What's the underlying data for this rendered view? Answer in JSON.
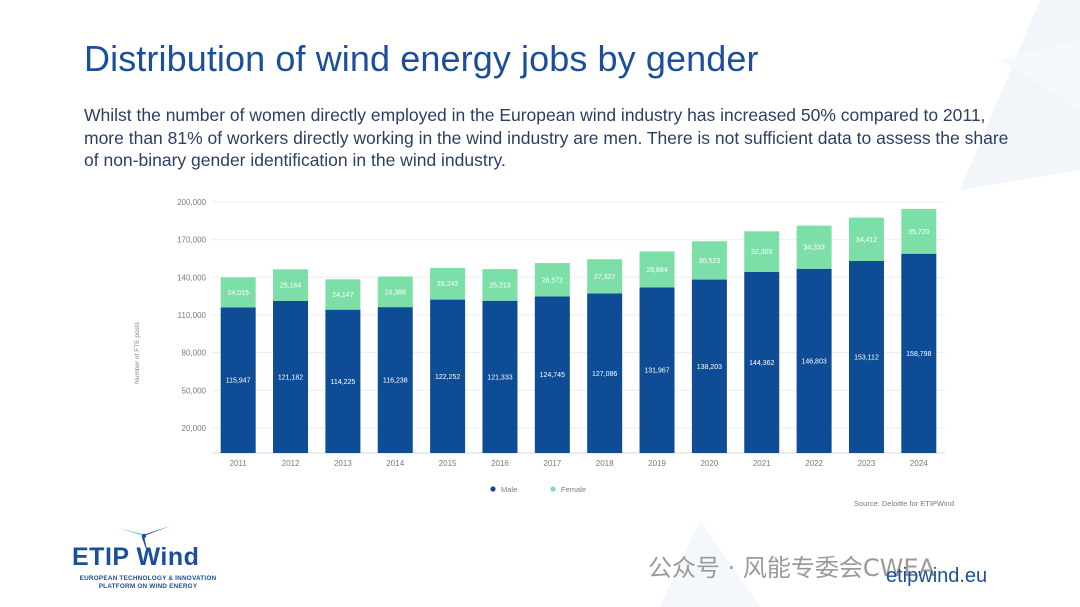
{
  "title": "Distribution of wind energy jobs by gender",
  "subtitle": "Whilst the number of women directly employed in the European wind industry has increased 50% compared to 2011, more than 81% of workers directly working in the wind industry are men. There is not sufficient data to assess the share of non-binary gender identification in the wind industry.",
  "chart_data": {
    "type": "bar",
    "stacked": true,
    "categories": [
      "2011",
      "2012",
      "2013",
      "2014",
      "2015",
      "2016",
      "2017",
      "2018",
      "2019",
      "2020",
      "2021",
      "2022",
      "2023",
      "2024"
    ],
    "series": [
      {
        "name": "Male",
        "color": "#0e4d96",
        "values": [
          115947,
          121182,
          114225,
          116238,
          122252,
          121333,
          124745,
          127086,
          131967,
          138203,
          144362,
          146803,
          153112,
          158798
        ],
        "labels": [
          "115,947",
          "121,182",
          "114,225",
          "116,238",
          "122,252",
          "121,333",
          "124,745",
          "127,086",
          "131,967",
          "138,203",
          "144,362",
          "146,803",
          "153,112",
          "158,798"
        ]
      },
      {
        "name": "Female",
        "color": "#7ddfa8",
        "values": [
          24015,
          25164,
          24147,
          24386,
          25243,
          25213,
          26572,
          27327,
          28684,
          30523,
          32303,
          34333,
          34412,
          35720
        ],
        "labels": [
          "24,015",
          "25,164",
          "24,147",
          "24,386",
          "25,243",
          "25,213",
          "26,572",
          "27,327",
          "28,684",
          "30,523",
          "32,303",
          "34,333",
          "34,412",
          "35,720"
        ]
      }
    ],
    "yticks": [
      "20,000",
      "50,000",
      "80,000",
      "110,000",
      "140,000",
      "170,000",
      "200,000"
    ],
    "ytick_values": [
      20000,
      50000,
      80000,
      110000,
      140000,
      170000,
      200000
    ],
    "ylabel": "Number of FTE posts",
    "xlabel": "",
    "grid": true,
    "legend_position": "bottom-center",
    "source": "Source: Deloitte for ETIPWind"
  },
  "logo": {
    "name": "ETIP Wind",
    "line1": "EUROPEAN TECHNOLOGY & INNOVATION",
    "line2": "PLATFORM ON WIND ENERGY"
  },
  "watermark": "公众号 · 风能专委会CWEA",
  "website": "etipwind.eu",
  "colors": {
    "brand": "#1b4f9a",
    "male": "#0e4d96",
    "female": "#7ddfa8"
  }
}
